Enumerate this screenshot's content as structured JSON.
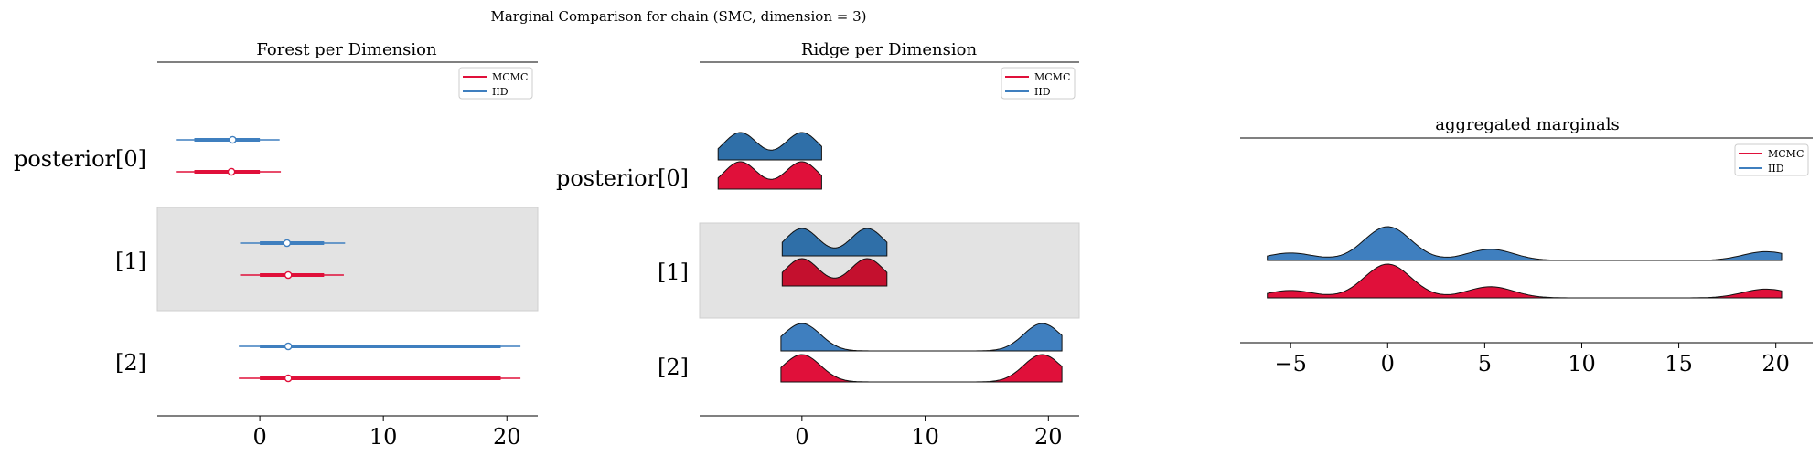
{
  "suptitle": "Marginal Comparison for chain (SMC, dimension = 3)",
  "colors": {
    "mcmc": "#e0103a",
    "mcmc_dark": "#c4102e",
    "iid": "#3f7fbf",
    "iid_dark": "#2f6fa8",
    "band": "#e3e3e3"
  },
  "chart_data": [
    {
      "type": "forest",
      "title": "Forest per Dimension",
      "xlim": [
        -8.3,
        22.5
      ],
      "xticks": [
        0,
        10,
        20
      ],
      "xtick_labels": [
        "0",
        "10",
        "20"
      ],
      "legend": {
        "placement": "top-right",
        "entries": [
          "MCMC",
          "IID"
        ]
      },
      "row_labels": [
        "posterior[0]",
        "[1]",
        "[2]"
      ],
      "shaded_rows": [
        1
      ],
      "series": [
        {
          "name": "IID",
          "rows": [
            {
              "min": -6.8,
              "q_low": -5.3,
              "median": -2.2,
              "q_high": 0.0,
              "max": 1.6
            },
            {
              "min": -1.6,
              "q_low": 0.0,
              "median": 2.2,
              "q_high": 5.2,
              "max": 6.9
            },
            {
              "min": -1.7,
              "q_low": 0.0,
              "median": 2.3,
              "q_high": 19.5,
              "max": 21.1
            }
          ]
        },
        {
          "name": "MCMC",
          "rows": [
            {
              "min": -6.8,
              "q_low": -5.3,
              "median": -2.3,
              "q_high": 0.0,
              "max": 1.7
            },
            {
              "min": -1.6,
              "q_low": 0.0,
              "median": 2.3,
              "q_high": 5.2,
              "max": 6.8
            },
            {
              "min": -1.7,
              "q_low": 0.0,
              "median": 2.3,
              "q_high": 19.5,
              "max": 21.1
            }
          ]
        }
      ]
    },
    {
      "type": "ridge",
      "title": "Ridge per Dimension",
      "xlim": [
        -8.3,
        22.5
      ],
      "xticks": [
        0,
        10,
        20
      ],
      "xtick_labels": [
        "0",
        "10",
        "20"
      ],
      "legend": {
        "placement": "top-right",
        "entries": [
          "MCMC",
          "IID"
        ]
      },
      "row_labels": [
        "posterior[0]",
        "[1]",
        "[2]"
      ],
      "shaded_rows": [
        1
      ],
      "rows": [
        {
          "range": [
            -6.8,
            1.6
          ],
          "peaks": [
            -5,
            0
          ]
        },
        {
          "range": [
            -1.6,
            6.9
          ],
          "peaks": [
            0,
            5.3
          ]
        },
        {
          "range": [
            -1.7,
            21.1
          ],
          "peaks": [
            0,
            19.5
          ]
        }
      ],
      "series": [
        "IID",
        "MCMC"
      ]
    },
    {
      "type": "ridge",
      "title": "aggregated marginals",
      "xlim": [
        -7.6,
        21.9
      ],
      "xticks": [
        -5,
        0,
        5,
        10,
        15,
        20
      ],
      "xtick_labels": [
        "−5",
        "0",
        "5",
        "10",
        "15",
        "20"
      ],
      "legend": {
        "placement": "top-right",
        "entries": [
          "MCMC",
          "IID"
        ]
      },
      "range": [
        -6.2,
        20.3
      ],
      "components": [
        {
          "mu": -5.0,
          "w": 0.22
        },
        {
          "mu": 0.0,
          "w": 1.0
        },
        {
          "mu": 5.3,
          "w": 0.33
        },
        {
          "mu": 19.5,
          "w": 0.26
        }
      ],
      "series": [
        "IID",
        "MCMC"
      ]
    }
  ]
}
